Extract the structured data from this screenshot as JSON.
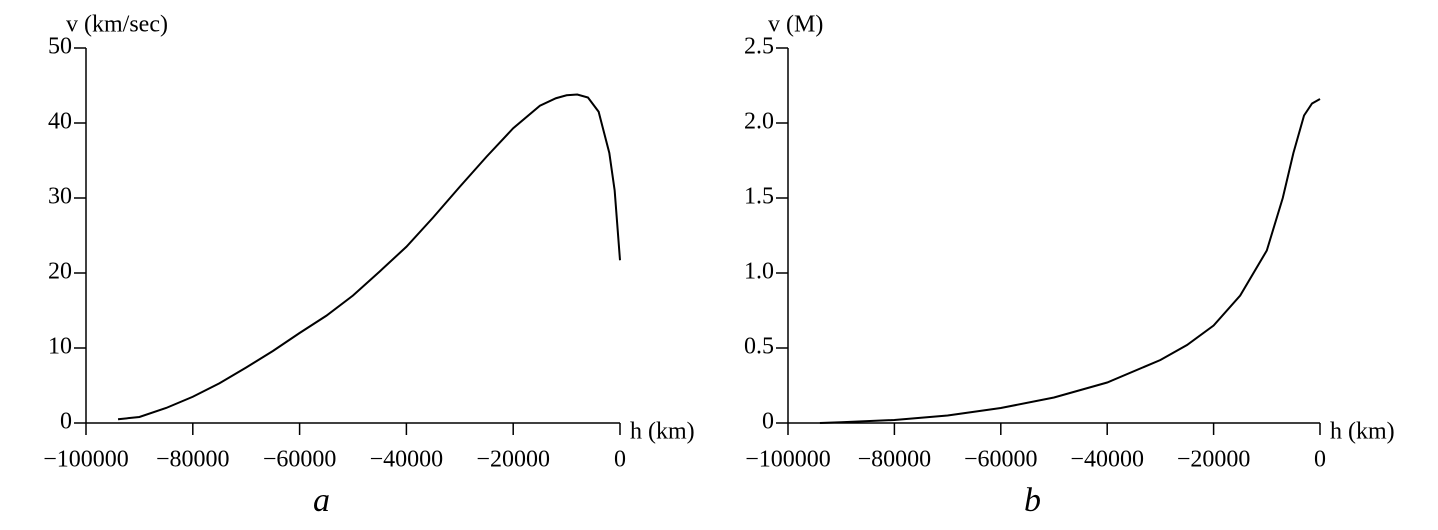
{
  "chart_data": [
    {
      "type": "line",
      "panel_label": "a",
      "y_label": "v (km/sec)",
      "x_label": "h (km)",
      "x": [
        -94000,
        -90000,
        -85000,
        -80000,
        -75000,
        -70000,
        -65000,
        -60000,
        -55000,
        -50000,
        -45000,
        -40000,
        -35000,
        -30000,
        -25000,
        -20000,
        -15000,
        -12000,
        -10000,
        -8000,
        -6000,
        -4000,
        -2000,
        -1000,
        0
      ],
      "series": [
        {
          "color": "#000000",
          "values": [
            0.5,
            0.8,
            2,
            3.5,
            5.3,
            7.4,
            9.6,
            12,
            14.3,
            17,
            20.2,
            23.5,
            27.4,
            31.5,
            35.5,
            39.3,
            42.3,
            43.3,
            43.7,
            43.8,
            43.4,
            41.5,
            36,
            31,
            21.7
          ]
        }
      ],
      "xlim": [
        -100000,
        0
      ],
      "ylim": [
        0,
        50
      ],
      "xticks": [
        {
          "value": -100000,
          "label": "−100000"
        },
        {
          "value": -80000,
          "label": "−80000"
        },
        {
          "value": -60000,
          "label": "−60000"
        },
        {
          "value": -40000,
          "label": "−40000"
        },
        {
          "value": -20000,
          "label": "−20000"
        },
        0
      ],
      "yticks": [
        0,
        10,
        20,
        30,
        40,
        50
      ]
    },
    {
      "type": "line",
      "panel_label": "b",
      "y_label": "v (M)",
      "x_label": "h (km)",
      "x": [
        -94000,
        -90000,
        -80000,
        -70000,
        -60000,
        -50000,
        -40000,
        -30000,
        -25000,
        -20000,
        -15000,
        -10000,
        -7000,
        -5000,
        -3000,
        -1500,
        0
      ],
      "series": [
        {
          "color": "#000000",
          "values": [
            0,
            0.005,
            0.02,
            0.05,
            0.1,
            0.17,
            0.27,
            0.42,
            0.52,
            0.65,
            0.85,
            1.15,
            1.5,
            1.8,
            2.05,
            2.13,
            2.16
          ]
        }
      ],
      "xlim": [
        -100000,
        0
      ],
      "ylim": [
        0,
        2.5
      ],
      "xticks": [
        {
          "value": -100000,
          "label": "−100000"
        },
        {
          "value": -80000,
          "label": "−80000"
        },
        {
          "value": -60000,
          "label": "−60000"
        },
        {
          "value": -40000,
          "label": "−40000"
        },
        {
          "value": -20000,
          "label": "−20000"
        },
        0
      ],
      "yticks": [
        0,
        0.5,
        {
          "value": 1,
          "label": "1.0"
        },
        1.5,
        {
          "value": 2,
          "label": "2.0"
        },
        2.5
      ]
    }
  ]
}
